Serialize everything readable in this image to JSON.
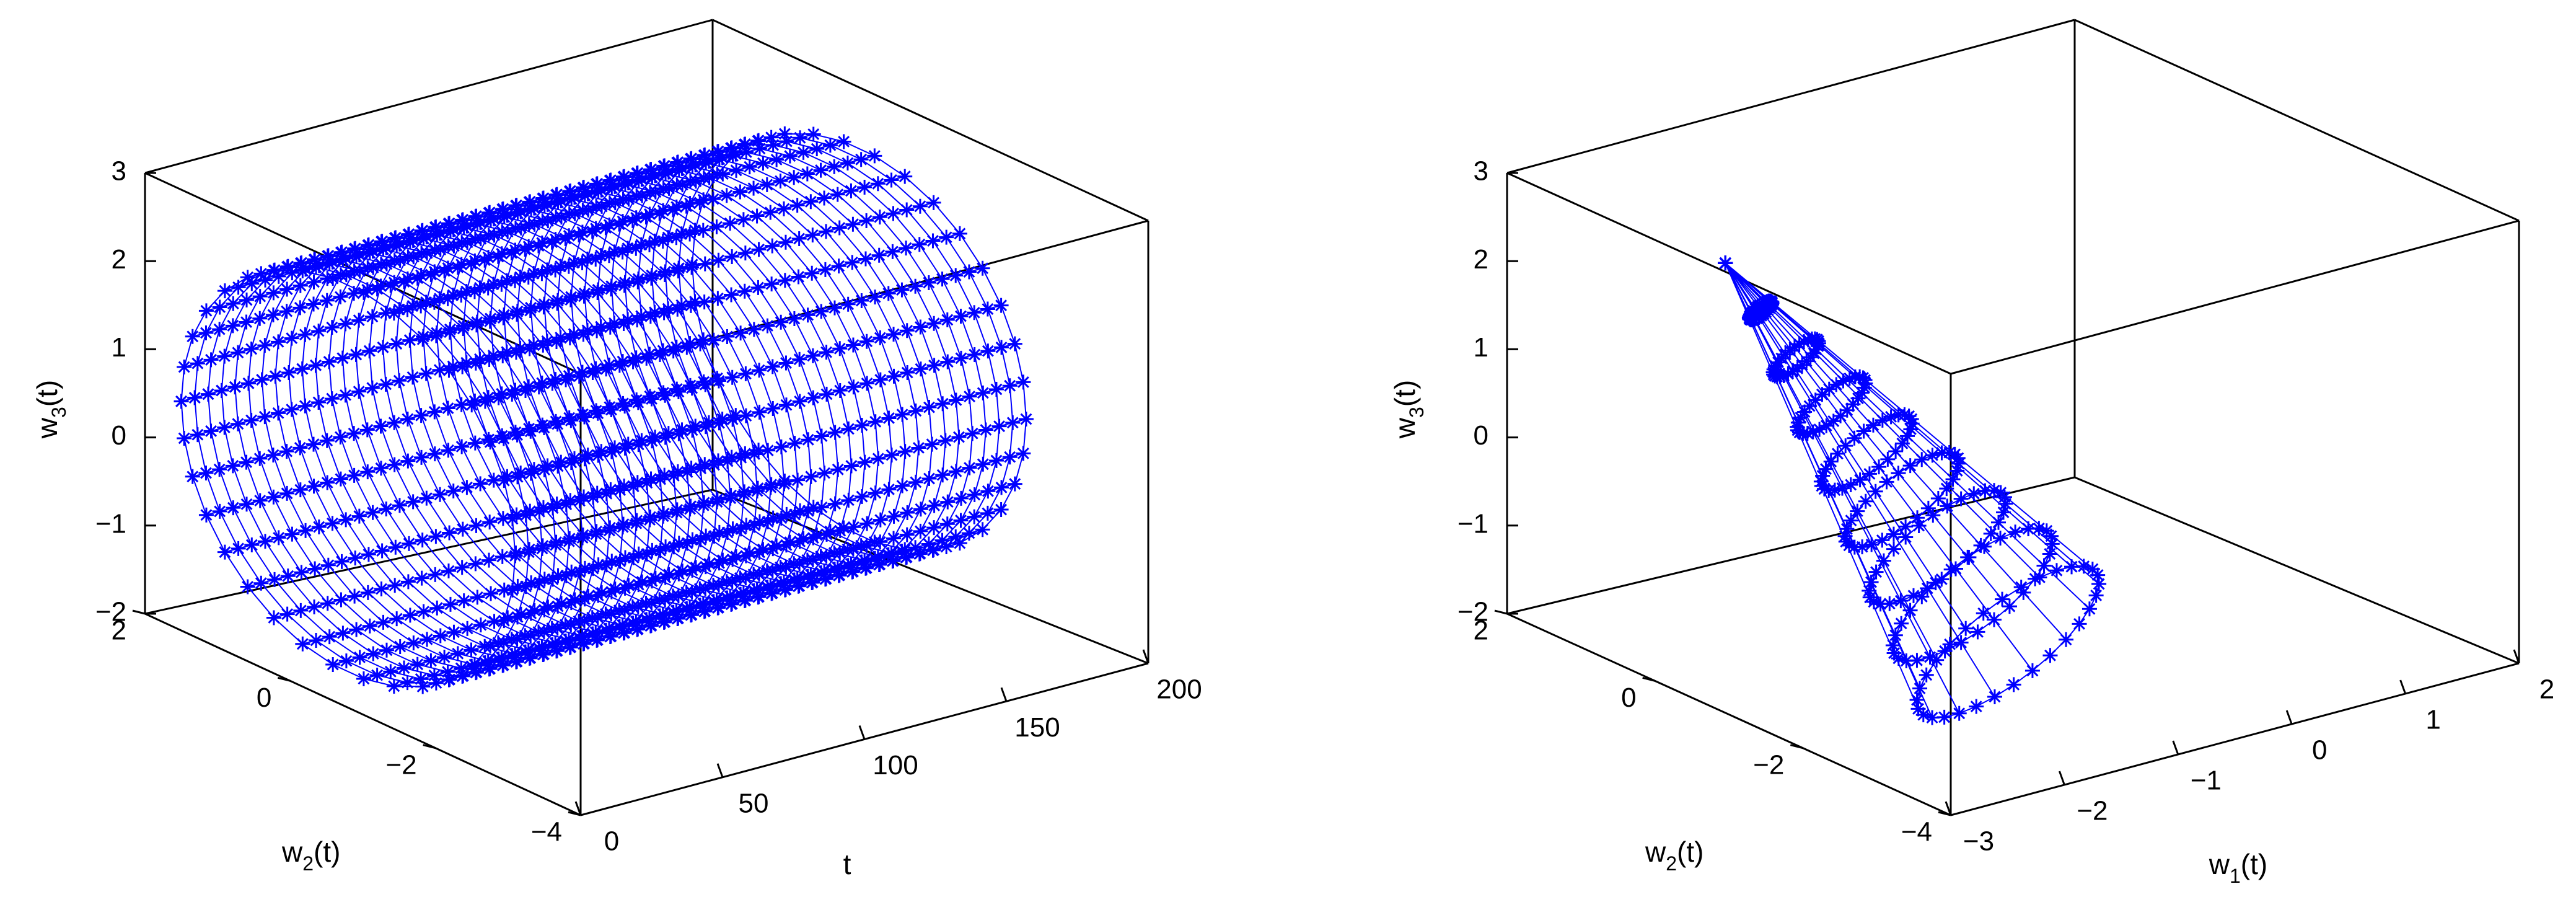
{
  "chart_data": [
    {
      "type": "surface-3d",
      "marker": "asterisk",
      "color": "#0000ff",
      "xlabel": "t",
      "ylabel": {
        "base": "w",
        "sub": "2",
        "suffix": "(t)"
      },
      "zlabel": {
        "base": "w",
        "sub": "3",
        "suffix": "(t)"
      },
      "x_ticks": [
        "0",
        "50",
        "100",
        "150",
        "200"
      ],
      "y_ticks": [
        "2",
        "0",
        "−2",
        "−4"
      ],
      "z_ticks": [
        "3",
        "2",
        "1",
        "0",
        "−1",
        "−2"
      ],
      "xlim": [
        0,
        200
      ],
      "ylim": [
        -4,
        2
      ],
      "zlim": [
        -2,
        3
      ],
      "description_data": {
        "t_range": [
          0,
          180
        ],
        "w2_range": [
          -3.2,
          1.6
        ],
        "w3_range": [
          -1.5,
          2.8
        ]
      }
    },
    {
      "type": "surface-3d",
      "marker": "asterisk",
      "color": "#0000ff",
      "xlabel": {
        "base": "w",
        "sub": "1",
        "suffix": "(t)"
      },
      "ylabel": {
        "base": "w",
        "sub": "2",
        "suffix": "(t)"
      },
      "zlabel": {
        "base": "w",
        "sub": "3",
        "suffix": "(t)"
      },
      "x_ticks": [
        "−3",
        "−2",
        "−1",
        "0",
        "1",
        "2"
      ],
      "y_ticks": [
        "2",
        "0",
        "−2",
        "−4"
      ],
      "z_ticks": [
        "3",
        "2",
        "1",
        "0",
        "−1",
        "−2"
      ],
      "xlim": [
        -3,
        2
      ],
      "ylim": [
        -4,
        2
      ],
      "zlim": [
        -2,
        3
      ]
    }
  ]
}
